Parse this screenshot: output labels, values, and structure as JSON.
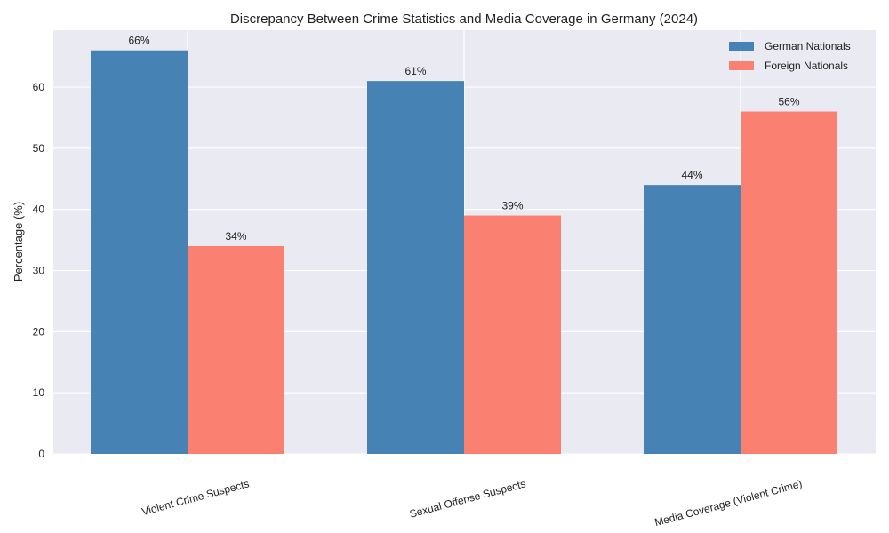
{
  "chart_data": {
    "type": "bar",
    "title": "Discrepancy Between Crime Statistics and Media Coverage in Germany (2024)",
    "xlabel": "",
    "ylabel": "Percentage (%)",
    "categories": [
      "Violent Crime Suspects",
      "Sexual Offense Suspects",
      "Media Coverage (Violent Crime)"
    ],
    "series": [
      {
        "name": "German Nationals",
        "values": [
          66,
          61,
          44
        ],
        "color": "#4682b4"
      },
      {
        "name": "Foreign Nationals",
        "values": [
          34,
          39,
          56
        ],
        "color": "#fa8072"
      }
    ],
    "value_suffix": "%",
    "ylim": [
      0,
      69.3
    ],
    "yticks": [
      0,
      10,
      20,
      30,
      40,
      50,
      60
    ],
    "grid": true,
    "legend_position": "top-right",
    "background": "#eaeaf2"
  }
}
